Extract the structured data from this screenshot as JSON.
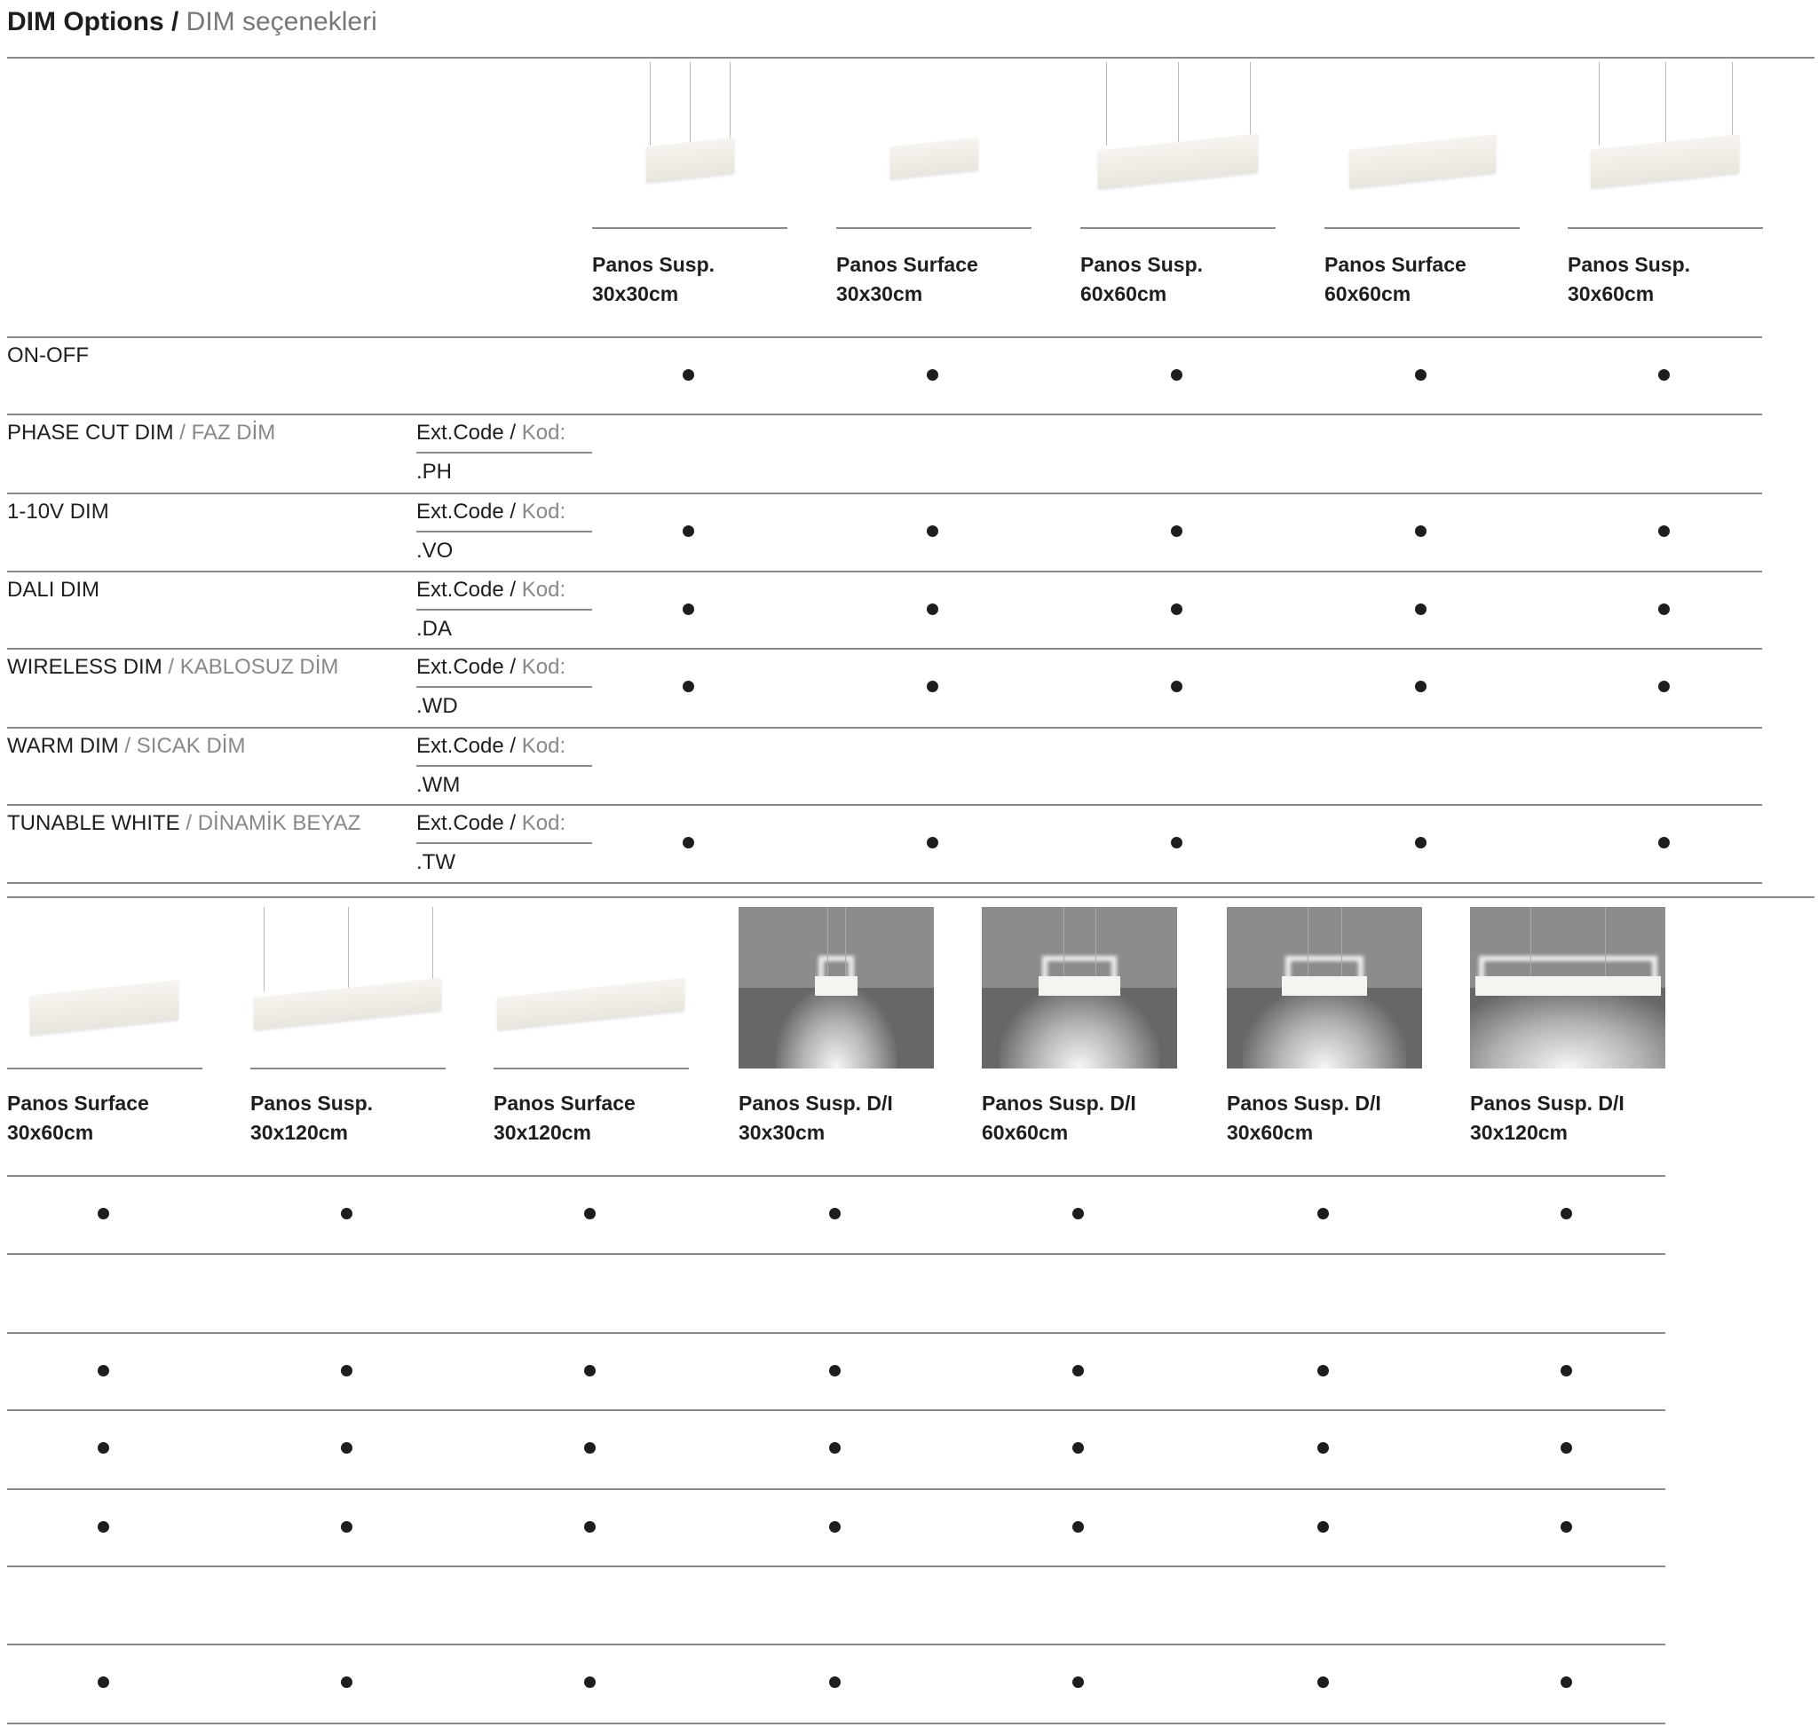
{
  "title": {
    "en": "DIM Options /",
    "tr": "DIM seçenekleri"
  },
  "ext_code": {
    "en": "Ext.Code",
    "sep": " / ",
    "tr": "Kod:"
  },
  "rows": [
    {
      "label": "ON-OFF",
      "label_tr": "",
      "code": ""
    },
    {
      "label": "PHASE CUT DIM",
      "label_tr": "FAZ DİM",
      "code": ".PH"
    },
    {
      "label": "1-10V DIM",
      "label_tr": "",
      "code": ".VO"
    },
    {
      "label": "DALI DIM",
      "label_tr": "",
      "code": ".DA"
    },
    {
      "label": "WIRELESS DIM",
      "label_tr": "KABLOSUZ DİM",
      "code": ".WD"
    },
    {
      "label": "WARM DIM",
      "label_tr": "SICAK DİM",
      "code": ".WM"
    },
    {
      "label": "TUNABLE WHITE",
      "label_tr": "DİNAMİK BEYAZ",
      "code": ".TW"
    }
  ],
  "products_top": [
    {
      "name": "Panos Susp.",
      "size": "30x30cm",
      "image": "susp-square-small",
      "availability": [
        true,
        false,
        true,
        true,
        true,
        false,
        true
      ]
    },
    {
      "name": "Panos Surface",
      "size": "30x30cm",
      "image": "surface-square-small",
      "availability": [
        true,
        false,
        true,
        true,
        true,
        false,
        true
      ]
    },
    {
      "name": "Panos Susp.",
      "size": "60x60cm",
      "image": "susp-square-large",
      "availability": [
        true,
        false,
        true,
        true,
        true,
        false,
        true
      ]
    },
    {
      "name": "Panos Surface",
      "size": "60x60cm",
      "image": "surface-square-large",
      "availability": [
        true,
        false,
        true,
        true,
        true,
        false,
        true
      ]
    },
    {
      "name": "Panos Susp.",
      "size": "30x60cm",
      "image": "susp-rect",
      "availability": [
        true,
        false,
        true,
        true,
        true,
        false,
        true
      ]
    }
  ],
  "products_bottom": [
    {
      "name": "Panos Surface",
      "size": "30x60cm",
      "image": "surface-rect",
      "availability": [
        true,
        false,
        true,
        true,
        true,
        false,
        true
      ]
    },
    {
      "name": "Panos Susp.",
      "size": "30x120cm",
      "image": "susp-long",
      "availability": [
        true,
        false,
        true,
        true,
        true,
        false,
        true
      ]
    },
    {
      "name": "Panos Surface",
      "size": "30x120cm",
      "image": "surface-long",
      "availability": [
        true,
        false,
        true,
        true,
        true,
        false,
        true
      ]
    },
    {
      "name": "Panos Susp. D/I",
      "size": "30x30cm",
      "image": "di-30x30",
      "availability": [
        true,
        false,
        true,
        true,
        true,
        false,
        true
      ]
    },
    {
      "name": "Panos Susp. D/I",
      "size": "60x60cm",
      "image": "di-60x60",
      "availability": [
        true,
        false,
        true,
        true,
        true,
        false,
        true
      ]
    },
    {
      "name": "Panos Susp. D/I",
      "size": "30x60cm",
      "image": "di-30x60",
      "availability": [
        true,
        false,
        true,
        true,
        true,
        false,
        true
      ]
    },
    {
      "name": "Panos Susp. D/I",
      "size": "30x120cm",
      "image": "di-30x120",
      "availability": [
        true,
        false,
        true,
        true,
        true,
        false,
        true
      ]
    }
  ],
  "colors": {
    "text": "#1e1e1e",
    "secondary": "#888888",
    "rule": "#8a8a8a"
  }
}
